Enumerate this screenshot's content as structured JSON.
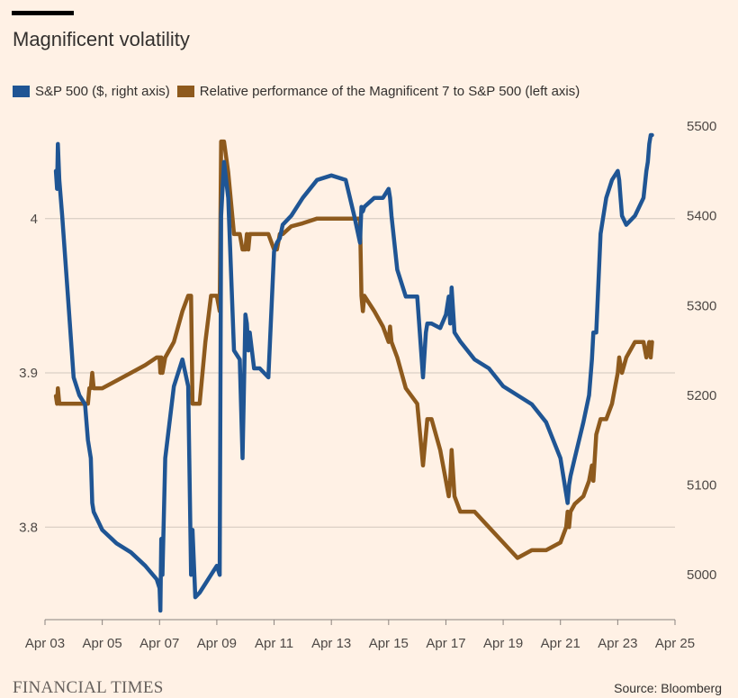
{
  "title": "Magnificent volatility",
  "source": "Source: Bloomberg",
  "brand": "FINANCIAL TIMES",
  "colors": {
    "background": "#fff1e5",
    "sp500": "#1f5594",
    "mag7": "#8e5a1d",
    "grid": "#d2c7bd",
    "axis": "#8a837e"
  },
  "chart_data": {
    "type": "line",
    "xlim": [
      3,
      25
    ],
    "x_ticks": [
      3,
      5,
      7,
      9,
      11,
      13,
      15,
      17,
      19,
      21,
      23,
      25
    ],
    "x_tick_labels": [
      "Apr 03",
      "Apr 05",
      "Apr 07",
      "Apr 09",
      "Apr 11",
      "Apr 13",
      "Apr 15",
      "Apr 17",
      "Apr 19",
      "Apr 21",
      "Apr 23",
      "Apr 25"
    ],
    "left_axis": {
      "ylim": [
        3.74,
        4.06
      ],
      "ticks": [
        3.8,
        3.9,
        4.0
      ],
      "tick_labels": [
        "3.8",
        "3.9",
        "4"
      ]
    },
    "right_axis": {
      "ylim": [
        4950,
        5500
      ],
      "ticks": [
        5000,
        5100,
        5200,
        5300,
        5400,
        5500
      ],
      "tick_labels": [
        "5000",
        "5100",
        "5200",
        "5300",
        "5400",
        "5500"
      ]
    },
    "grid": true,
    "legend_position": "top-left",
    "series": [
      {
        "name": "S&P 500 ($, right axis)",
        "axis": "right",
        "color": "#1f5594",
        "x": [
          3.38,
          3.42,
          3.45,
          3.5,
          3.6,
          3.8,
          4.0,
          4.2,
          4.4,
          4.5,
          4.55,
          4.6,
          4.65,
          4.7,
          5.0,
          5.5,
          6.0,
          6.5,
          6.9,
          7.0,
          7.03,
          7.06,
          7.1,
          7.2,
          7.5,
          7.8,
          8.0,
          8.1,
          8.15,
          8.25,
          8.4,
          8.6,
          8.8,
          9.0,
          9.1,
          9.15,
          9.25,
          9.4,
          9.6,
          9.8,
          9.9,
          10.0,
          10.05,
          10.1,
          10.15,
          10.3,
          10.5,
          10.8,
          11.0,
          11.1,
          11.2,
          11.3,
          11.6,
          12.0,
          12.5,
          13.0,
          13.5,
          13.8,
          14.0,
          14.05,
          14.1,
          14.15,
          14.5,
          14.8,
          15.0,
          15.05,
          15.1,
          15.3,
          15.6,
          16.0,
          16.2,
          16.3,
          16.35,
          16.5,
          16.8,
          17.0,
          17.1,
          17.15,
          17.2,
          17.3,
          17.5,
          18.0,
          18.5,
          19.0,
          19.5,
          20.0,
          20.5,
          21.0,
          21.2,
          21.25,
          21.3,
          21.35,
          21.5,
          21.8,
          22.0,
          22.1,
          22.15,
          22.25,
          22.4,
          22.6,
          22.8,
          23.0,
          23.05,
          23.1,
          23.15,
          23.3,
          23.6,
          23.9,
          24.0,
          24.05,
          24.1,
          24.15,
          24.2
        ],
        "values": [
          5450,
          5430,
          5480,
          5440,
          5400,
          5310,
          5220,
          5200,
          5190,
          5150,
          5140,
          5130,
          5080,
          5070,
          5050,
          5035,
          5025,
          5010,
          4995,
          4985,
          4960,
          5040,
          5000,
          5130,
          5210,
          5240,
          5210,
          5000,
          5050,
          4975,
          4980,
          4990,
          5000,
          5010,
          5000,
          5400,
          5460,
          5420,
          5250,
          5240,
          5130,
          5290,
          5280,
          5250,
          5270,
          5230,
          5230,
          5220,
          5360,
          5370,
          5375,
          5390,
          5400,
          5420,
          5440,
          5445,
          5440,
          5400,
          5370,
          5410,
          5405,
          5410,
          5420,
          5420,
          5430,
          5420,
          5400,
          5340,
          5310,
          5310,
          5220,
          5270,
          5280,
          5280,
          5275,
          5290,
          5310,
          5280,
          5320,
          5270,
          5260,
          5240,
          5230,
          5210,
          5200,
          5190,
          5170,
          5130,
          5090,
          5080,
          5100,
          5110,
          5130,
          5170,
          5200,
          5240,
          5270,
          5270,
          5380,
          5420,
          5440,
          5450,
          5440,
          5420,
          5400,
          5390,
          5400,
          5420,
          5450,
          5460,
          5480,
          5490,
          5490
        ]
      },
      {
        "name": "Relative performance of the Magnificent 7 to S&P 500 (left axis)",
        "axis": "left",
        "color": "#8e5a1d",
        "x": [
          3.38,
          3.42,
          3.45,
          3.5,
          3.6,
          3.8,
          4.0,
          4.2,
          4.4,
          4.5,
          4.55,
          4.6,
          4.65,
          4.7,
          5.0,
          5.5,
          6.0,
          6.5,
          6.9,
          7.0,
          7.03,
          7.06,
          7.1,
          7.2,
          7.5,
          7.8,
          8.0,
          8.1,
          8.15,
          8.25,
          8.4,
          8.6,
          8.8,
          9.0,
          9.1,
          9.15,
          9.25,
          9.4,
          9.6,
          9.8,
          9.9,
          10.0,
          10.05,
          10.1,
          10.15,
          10.3,
          10.5,
          10.8,
          11.0,
          11.1,
          11.2,
          11.3,
          11.6,
          12.0,
          12.5,
          13.0,
          13.5,
          13.8,
          14.0,
          14.05,
          14.1,
          14.15,
          14.5,
          14.8,
          15.0,
          15.05,
          15.1,
          15.3,
          15.6,
          16.0,
          16.2,
          16.3,
          16.35,
          16.5,
          16.8,
          17.0,
          17.1,
          17.15,
          17.2,
          17.3,
          17.5,
          18.0,
          18.5,
          19.0,
          19.5,
          20.0,
          20.5,
          21.0,
          21.2,
          21.25,
          21.3,
          21.35,
          21.5,
          21.8,
          22.0,
          22.1,
          22.15,
          22.25,
          22.4,
          22.6,
          22.8,
          23.0,
          23.05,
          23.1,
          23.15,
          23.3,
          23.6,
          23.9,
          24.0,
          24.05,
          24.1,
          24.15,
          24.2
        ],
        "values": [
          3.885,
          3.88,
          3.89,
          3.88,
          3.88,
          3.88,
          3.88,
          3.88,
          3.88,
          3.88,
          3.89,
          3.89,
          3.9,
          3.89,
          3.89,
          3.895,
          3.9,
          3.905,
          3.91,
          3.91,
          3.9,
          3.91,
          3.9,
          3.91,
          3.92,
          3.94,
          3.95,
          3.95,
          3.88,
          3.88,
          3.88,
          3.92,
          3.95,
          3.95,
          3.94,
          4.05,
          4.05,
          4.03,
          3.99,
          3.99,
          3.98,
          3.98,
          3.99,
          3.98,
          3.99,
          3.99,
          3.99,
          3.99,
          3.98,
          3.98,
          3.99,
          3.99,
          3.995,
          3.997,
          4.0,
          4.0,
          4.0,
          4.0,
          4.0,
          3.95,
          3.94,
          3.95,
          3.94,
          3.93,
          3.92,
          3.93,
          3.92,
          3.91,
          3.89,
          3.88,
          3.84,
          3.86,
          3.87,
          3.87,
          3.85,
          3.83,
          3.82,
          3.83,
          3.85,
          3.82,
          3.81,
          3.81,
          3.8,
          3.79,
          3.78,
          3.785,
          3.785,
          3.79,
          3.8,
          3.81,
          3.8,
          3.81,
          3.815,
          3.82,
          3.83,
          3.84,
          3.83,
          3.86,
          3.87,
          3.87,
          3.88,
          3.9,
          3.91,
          3.905,
          3.9,
          3.91,
          3.92,
          3.92,
          3.91,
          3.915,
          3.92,
          3.91,
          3.92
        ]
      }
    ]
  }
}
